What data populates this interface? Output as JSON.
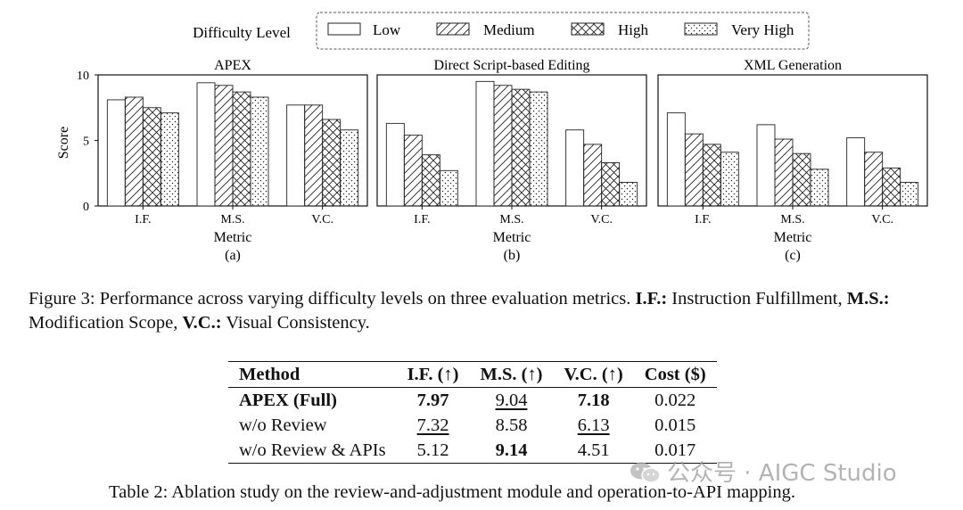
{
  "figure": {
    "legend_title": "Difficulty Level",
    "legend": [
      "Low",
      "Medium",
      "High",
      "Very High"
    ],
    "y_axis_label": "Score",
    "x_axis_label": "Metric",
    "caption_label": "Figure 3:",
    "caption_text": "Performance across varying difficulty levels on three evaluation metrics.",
    "abbr": [
      {
        "key": "I.F.:",
        "value": "Instruction Fulfillment,"
      },
      {
        "key": "M.S.:",
        "value": "Modification Scope,"
      },
      {
        "key": "V.C.:",
        "value": "Visual Consistency."
      }
    ]
  },
  "chart_data": [
    {
      "type": "bar",
      "title": "APEX",
      "sublabel": "(a)",
      "xlabel": "Metric",
      "ylabel": "Score",
      "ylim": [
        0,
        10
      ],
      "yticks": [
        0,
        5,
        10
      ],
      "categories": [
        "I.F.",
        "M.S.",
        "V.C."
      ],
      "series": [
        {
          "name": "Low",
          "values": [
            8.1,
            9.4,
            7.7
          ]
        },
        {
          "name": "Medium",
          "values": [
            8.3,
            9.2,
            7.7
          ]
        },
        {
          "name": "High",
          "values": [
            7.5,
            8.7,
            6.6
          ]
        },
        {
          "name": "Very High",
          "values": [
            7.1,
            8.3,
            5.8
          ]
        }
      ]
    },
    {
      "type": "bar",
      "title": "Direct Script-based Editing",
      "sublabel": "(b)",
      "xlabel": "Metric",
      "ylim": [
        0,
        10
      ],
      "yticks": [
        0,
        5,
        10
      ],
      "categories": [
        "I.F.",
        "M.S.",
        "V.C."
      ],
      "series": [
        {
          "name": "Low",
          "values": [
            6.3,
            9.5,
            5.8
          ]
        },
        {
          "name": "Medium",
          "values": [
            5.4,
            9.2,
            4.7
          ]
        },
        {
          "name": "High",
          "values": [
            3.9,
            8.9,
            3.3
          ]
        },
        {
          "name": "Very High",
          "values": [
            2.7,
            8.7,
            1.8
          ]
        }
      ]
    },
    {
      "type": "bar",
      "title": "XML Generation",
      "sublabel": "(c)",
      "xlabel": "Metric",
      "ylim": [
        0,
        10
      ],
      "yticks": [
        0,
        5,
        10
      ],
      "categories": [
        "I.F.",
        "M.S.",
        "V.C."
      ],
      "series": [
        {
          "name": "Low",
          "values": [
            7.1,
            6.2,
            5.2
          ]
        },
        {
          "name": "Medium",
          "values": [
            5.5,
            5.1,
            4.1
          ]
        },
        {
          "name": "High",
          "values": [
            4.7,
            4.0,
            2.9
          ]
        },
        {
          "name": "Very High",
          "values": [
            4.1,
            2.8,
            1.8
          ]
        }
      ]
    }
  ],
  "table": {
    "headers": [
      "Method",
      "I.F. (↑)",
      "M.S. (↑)",
      "V.C. (↑)",
      "Cost ($)"
    ],
    "rows": [
      [
        "APEX (Full)",
        "7.97",
        "9.04",
        "7.18",
        "0.022"
      ],
      [
        "w/o Review",
        "7.32",
        "8.58",
        "6.13",
        "0.015"
      ],
      [
        "w/o Review & APIs",
        "5.12",
        "9.14",
        "4.51",
        "0.017"
      ]
    ],
    "caption": "Table 2: Ablation study on the review-and-adjustment module and operation-to-API mapping."
  },
  "watermark": "公众号 · AIGC Studio"
}
